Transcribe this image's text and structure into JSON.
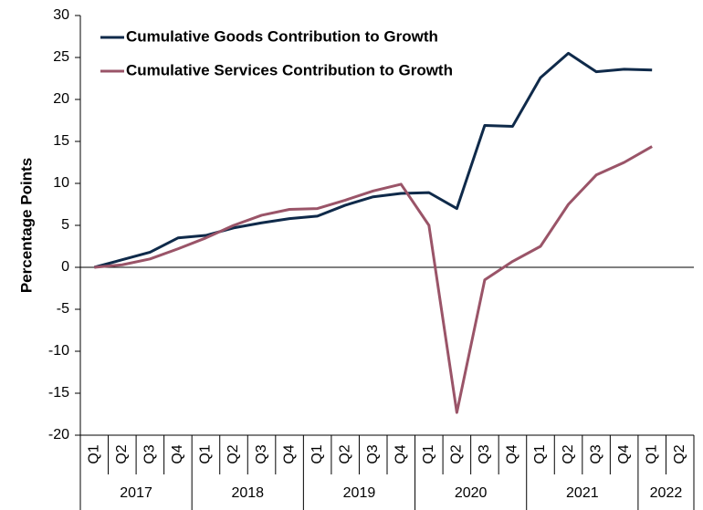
{
  "chart_data": {
    "type": "line",
    "y_label": "Percentage Points",
    "categories": [
      "Q1",
      "Q2",
      "Q3",
      "Q4",
      "Q1",
      "Q2",
      "Q3",
      "Q4",
      "Q1",
      "Q2",
      "Q3",
      "Q4",
      "Q1",
      "Q2",
      "Q3",
      "Q4",
      "Q1",
      "Q2",
      "Q3",
      "Q4",
      "Q1",
      "Q2"
    ],
    "year_groups": [
      {
        "label": "2017",
        "span": 4
      },
      {
        "label": "2018",
        "span": 4
      },
      {
        "label": "2019",
        "span": 4
      },
      {
        "label": "2020",
        "span": 4
      },
      {
        "label": "2021",
        "span": 4
      },
      {
        "label": "2022",
        "span": 2
      }
    ],
    "series": [
      {
        "name": "Cumulative Goods Contribution to Growth",
        "color": "#0f2a4a",
        "values": [
          0,
          0.9,
          1.8,
          3.5,
          3.8,
          4.7,
          5.3,
          5.8,
          6.1,
          7.4,
          8.4,
          8.8,
          8.9,
          7.0,
          16.9,
          16.8,
          22.6,
          25.5,
          23.3,
          23.6,
          23.5,
          null
        ]
      },
      {
        "name": "Cumulative Services Contribution to Growth",
        "color": "#9a5468",
        "values": [
          0,
          0.3,
          1.0,
          2.2,
          3.5,
          5.0,
          6.2,
          6.9,
          7.0,
          8.0,
          9.1,
          9.9,
          5.0,
          -17.3,
          -1.5,
          0.7,
          2.5,
          7.5,
          11.0,
          12.5,
          14.4,
          null
        ]
      }
    ],
    "ylim": [
      -20,
      30
    ],
    "yticks": [
      -20,
      -15,
      -10,
      -5,
      0,
      5,
      10,
      15,
      20,
      25,
      30
    ],
    "legend": "upper left"
  }
}
